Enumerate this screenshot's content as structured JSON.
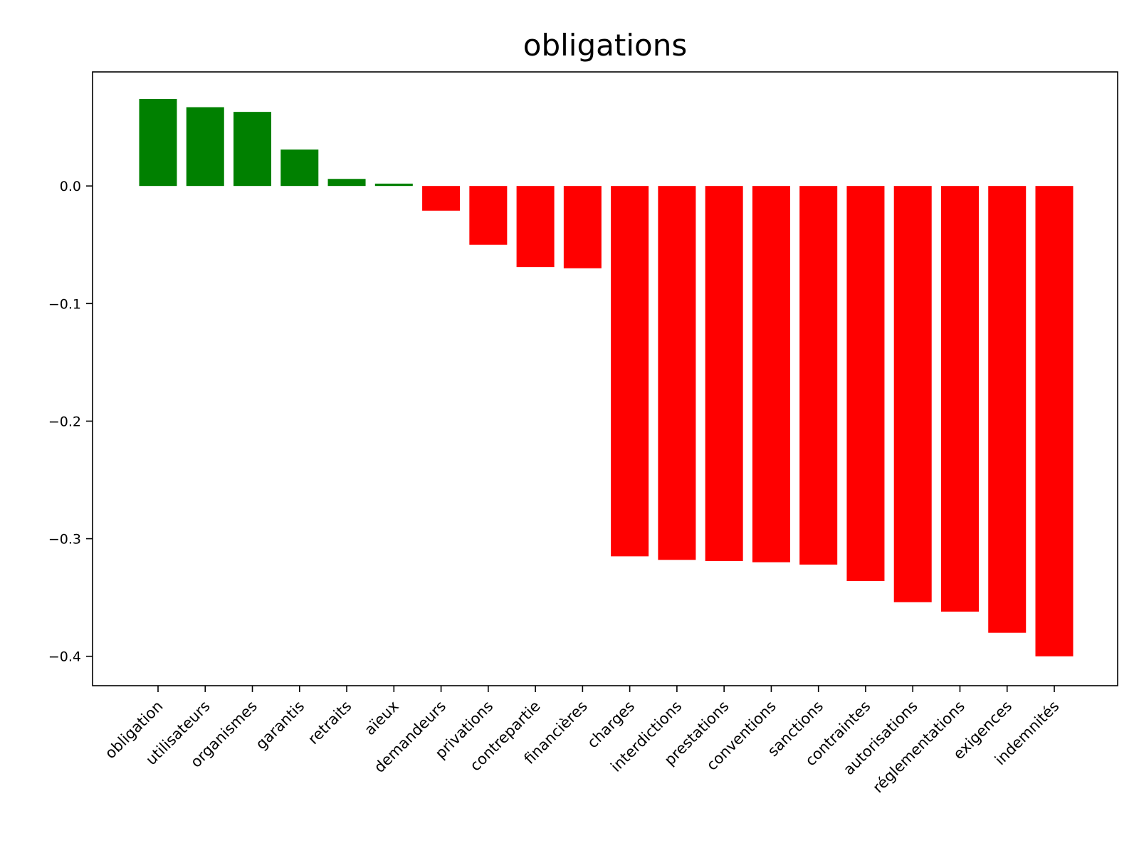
{
  "chart_data": {
    "type": "bar",
    "title": "obligations",
    "xlabel": "",
    "ylabel": "",
    "ylim": [
      -0.425,
      0.097
    ],
    "yticks": [
      0.0,
      -0.1,
      -0.2,
      -0.3,
      -0.4
    ],
    "ytick_labels": [
      "0.0",
      "−0.1",
      "−0.2",
      "−0.3",
      "−0.4"
    ],
    "grid": false,
    "legend": "none",
    "categories": [
      "obligation",
      "utilisateurs",
      "organismes",
      "garantis",
      "retraits",
      "aïeux",
      "demandeurs",
      "privations",
      "contrepartie",
      "financières",
      "charges",
      "interdictions",
      "prestations",
      "conventions",
      "sanctions",
      "contraintes",
      "autorisations",
      "réglementations",
      "exigences",
      "indemnités"
    ],
    "values": [
      0.074,
      0.067,
      0.063,
      0.031,
      0.006,
      0.002,
      -0.021,
      -0.05,
      -0.069,
      -0.07,
      -0.315,
      -0.318,
      -0.319,
      -0.32,
      -0.322,
      -0.336,
      -0.354,
      -0.362,
      -0.38,
      -0.4
    ],
    "colors": {
      "positive": "#008000",
      "negative": "#ff0000",
      "axis": "#000000"
    }
  }
}
